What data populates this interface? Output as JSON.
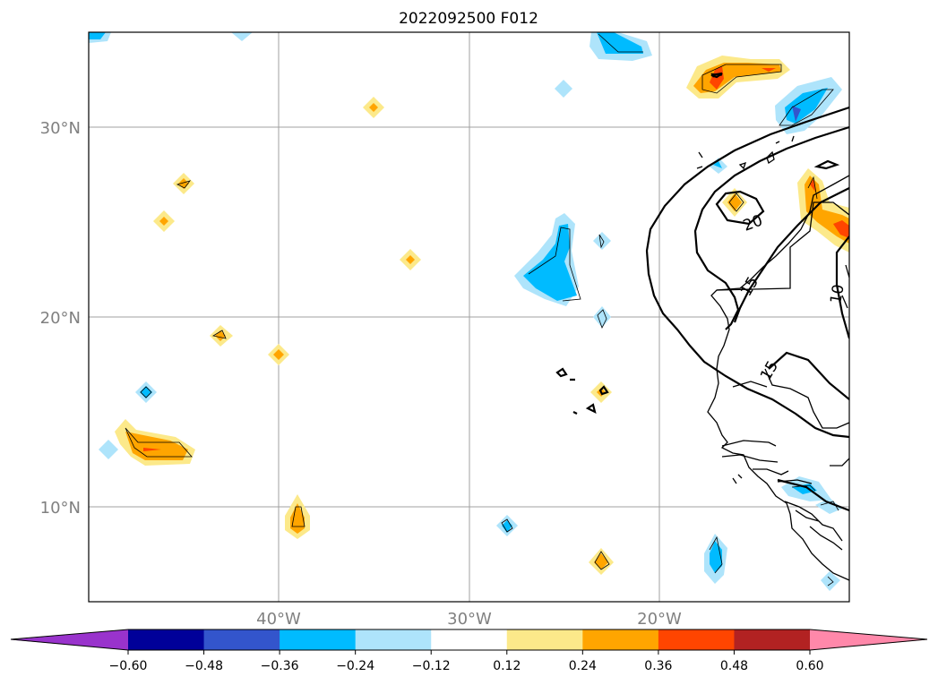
{
  "title": "2022092500 F012",
  "map": {
    "lat_range": [
      5,
      35
    ],
    "lon_range": [
      -50,
      -10
    ],
    "lat_ticks": [
      {
        "value": 30,
        "label": "30°N"
      },
      {
        "value": 20,
        "label": "20°N"
      },
      {
        "value": 10,
        "label": "10°N"
      }
    ],
    "lon_ticks": [
      {
        "value": -40,
        "label": "40°W"
      },
      {
        "value": -30,
        "label": "30°W"
      },
      {
        "value": -20,
        "label": "20°W"
      }
    ],
    "grid": true,
    "contour_labels": [
      "20",
      "15",
      "15",
      "10"
    ]
  },
  "colorbar": {
    "orientation": "horizontal",
    "extend": "both",
    "levels": [
      "−0.60",
      "−0.48",
      "−0.36",
      "−0.24",
      "−0.12",
      "0.12",
      "0.24",
      "0.36",
      "0.48",
      "0.60"
    ],
    "colors": [
      "#9933cc",
      "#000099",
      "#3355cc",
      "#00bbff",
      "#aee4fb",
      "#ffffff",
      "#fce98a",
      "#ffa500",
      "#ff4500",
      "#b22222",
      "#ff88aa"
    ]
  },
  "legend_colors": {
    "neg_light": "#aee4fb",
    "neg_mid": "#00bbff",
    "neg_dark": "#3355cc",
    "pos_light": "#fce98a",
    "pos_mid": "#ffa500",
    "pos_dark": "#ff4500",
    "pos_darkest": "#b22222"
  }
}
